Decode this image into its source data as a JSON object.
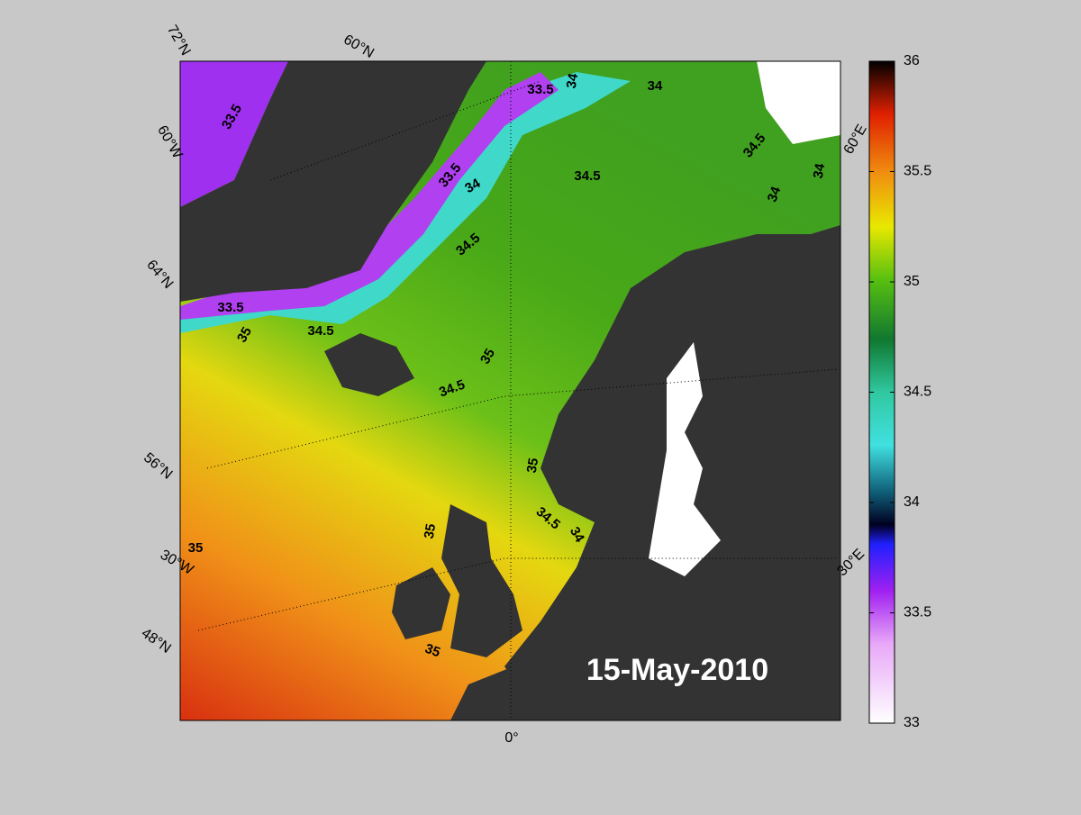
{
  "map": {
    "graticule_labels": [
      "72°N",
      "60°N",
      "60°W",
      "64°N",
      "56°N",
      "30°W",
      "48°N",
      "0°",
      "60°E",
      "30°E"
    ],
    "contour_labels": [
      "33.5",
      "33.5",
      "34",
      "34",
      "33.5",
      "34",
      "34.5",
      "34.5",
      "34.5",
      "34",
      "34",
      "33.5",
      "35",
      "34.5",
      "35",
      "34.5",
      "35",
      "34.5",
      "34",
      "35",
      "35",
      "35"
    ],
    "date": "15-May-2010"
  },
  "colorbar": {
    "lim": [
      33,
      36
    ],
    "ticks": [
      33,
      33.5,
      34,
      34.5,
      35,
      35.5,
      36
    ]
  }
}
